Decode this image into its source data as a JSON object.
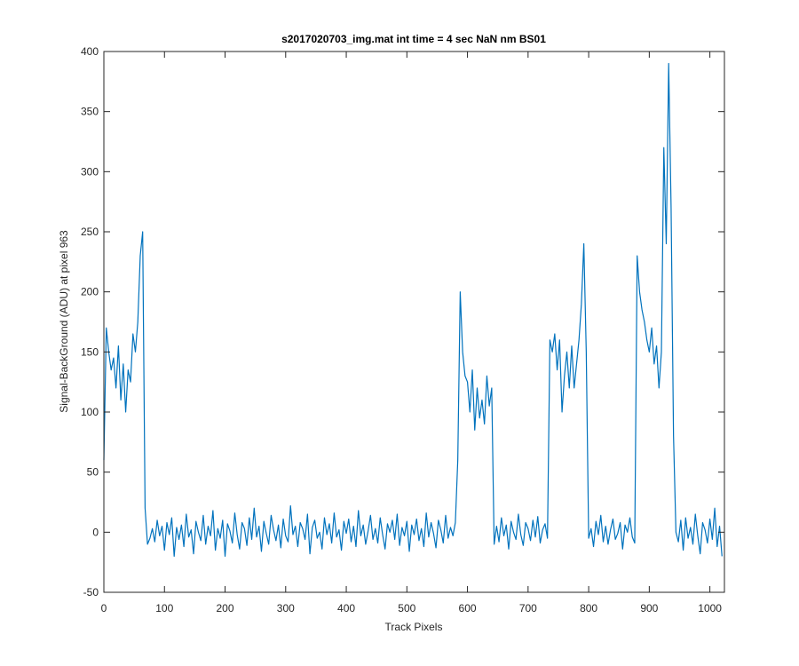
{
  "chart_data": {
    "type": "line",
    "title": "s2017020703_img.mat int time = 4 sec  NaN nm BS01",
    "xlabel": "Track Pixels",
    "ylabel": "Signal-BackGround (ADU) at pixel 963",
    "color": "#0072bd",
    "xlim": [
      0,
      1024
    ],
    "ylim": [
      -50,
      400
    ],
    "xticks": [
      0,
      100,
      200,
      300,
      400,
      500,
      600,
      700,
      800,
      900,
      1000
    ],
    "yticks": [
      -50,
      0,
      50,
      100,
      150,
      200,
      250,
      300,
      350,
      400
    ],
    "x": [
      0,
      4,
      8,
      12,
      16,
      20,
      24,
      28,
      32,
      36,
      40,
      44,
      48,
      52,
      56,
      60,
      64,
      68,
      72,
      76,
      80,
      84,
      88,
      92,
      96,
      100,
      104,
      108,
      112,
      116,
      120,
      124,
      128,
      132,
      136,
      140,
      144,
      148,
      152,
      156,
      160,
      164,
      168,
      172,
      176,
      180,
      184,
      188,
      192,
      196,
      200,
      204,
      208,
      212,
      216,
      220,
      224,
      228,
      232,
      236,
      240,
      244,
      248,
      252,
      256,
      260,
      264,
      268,
      272,
      276,
      280,
      284,
      288,
      292,
      296,
      300,
      304,
      308,
      312,
      316,
      320,
      324,
      328,
      332,
      336,
      340,
      344,
      348,
      352,
      356,
      360,
      364,
      368,
      372,
      376,
      380,
      384,
      388,
      392,
      396,
      400,
      404,
      408,
      412,
      416,
      420,
      424,
      428,
      432,
      436,
      440,
      444,
      448,
      452,
      456,
      460,
      464,
      468,
      472,
      476,
      480,
      484,
      488,
      492,
      496,
      500,
      504,
      508,
      512,
      516,
      520,
      524,
      528,
      532,
      536,
      540,
      544,
      548,
      552,
      556,
      560,
      564,
      568,
      572,
      576,
      580,
      584,
      588,
      592,
      596,
      600,
      604,
      608,
      612,
      616,
      620,
      624,
      628,
      632,
      636,
      640,
      644,
      648,
      652,
      656,
      660,
      664,
      668,
      672,
      676,
      680,
      684,
      688,
      692,
      696,
      700,
      704,
      708,
      712,
      716,
      720,
      724,
      728,
      732,
      736,
      740,
      744,
      748,
      752,
      756,
      760,
      764,
      768,
      772,
      776,
      780,
      784,
      788,
      792,
      796,
      800,
      804,
      808,
      812,
      816,
      820,
      824,
      828,
      832,
      836,
      840,
      844,
      848,
      852,
      856,
      860,
      864,
      868,
      872,
      876,
      880,
      884,
      888,
      892,
      896,
      900,
      904,
      908,
      912,
      916,
      920,
      924,
      928,
      932,
      936,
      940,
      944,
      948,
      952,
      956,
      960,
      964,
      968,
      972,
      976,
      980,
      984,
      988,
      992,
      996,
      1000,
      1004,
      1008,
      1012,
      1016,
      1020
    ],
    "values": [
      60,
      170,
      150,
      135,
      145,
      120,
      155,
      110,
      140,
      100,
      135,
      125,
      165,
      150,
      175,
      230,
      250,
      20,
      -10,
      -5,
      3,
      -8,
      10,
      -3,
      5,
      -15,
      8,
      -2,
      12,
      -20,
      4,
      -6,
      6,
      -12,
      15,
      -4,
      2,
      -18,
      9,
      0,
      -7,
      14,
      -10,
      5,
      -3,
      18,
      -15,
      3,
      -5,
      10,
      -20,
      7,
      1,
      -9,
      16,
      -2,
      -14,
      8,
      3,
      -11,
      12,
      -6,
      20,
      -4,
      5,
      -16,
      9,
      -1,
      -10,
      14,
      2,
      -7,
      6,
      -13,
      11,
      -3,
      -8,
      22,
      -2,
      5,
      -12,
      8,
      3,
      -6,
      15,
      -18,
      4,
      10,
      -5,
      0,
      -14,
      12,
      -2,
      7,
      -9,
      16,
      -4,
      2,
      -15,
      9,
      -1,
      11,
      -8,
      5,
      -12,
      18,
      -3,
      6,
      -10,
      1,
      14,
      -6,
      3,
      -9,
      12,
      -2,
      -14,
      7,
      0,
      10,
      -6,
      15,
      -11,
      4,
      -3,
      9,
      -16,
      6,
      -2,
      11,
      -7,
      3,
      -12,
      16,
      -4,
      8,
      -1,
      -13,
      10,
      2,
      -9,
      14,
      -5,
      4,
      -3,
      8,
      60,
      200,
      150,
      130,
      125,
      100,
      135,
      85,
      120,
      95,
      110,
      90,
      130,
      105,
      120,
      -10,
      5,
      -8,
      12,
      -3,
      6,
      -14,
      9,
      0,
      -6,
      15,
      -2,
      -11,
      8,
      3,
      -7,
      10,
      -4,
      13,
      -9,
      2,
      7,
      -5,
      160,
      150,
      165,
      135,
      160,
      100,
      130,
      150,
      120,
      155,
      120,
      140,
      160,
      190,
      240,
      150,
      -5,
      3,
      -12,
      9,
      -2,
      14,
      -8,
      5,
      -10,
      2,
      11,
      -6,
      -1,
      8,
      -14,
      6,
      0,
      12,
      -4,
      -9,
      230,
      200,
      185,
      175,
      160,
      150,
      170,
      140,
      155,
      120,
      150,
      320,
      240,
      390,
      270,
      80,
      0,
      -8,
      10,
      -15,
      12,
      -5,
      4,
      -10,
      15,
      -3,
      -18,
      8,
      2,
      -9,
      11,
      -6,
      20,
      -12,
      5,
      -20
    ]
  }
}
